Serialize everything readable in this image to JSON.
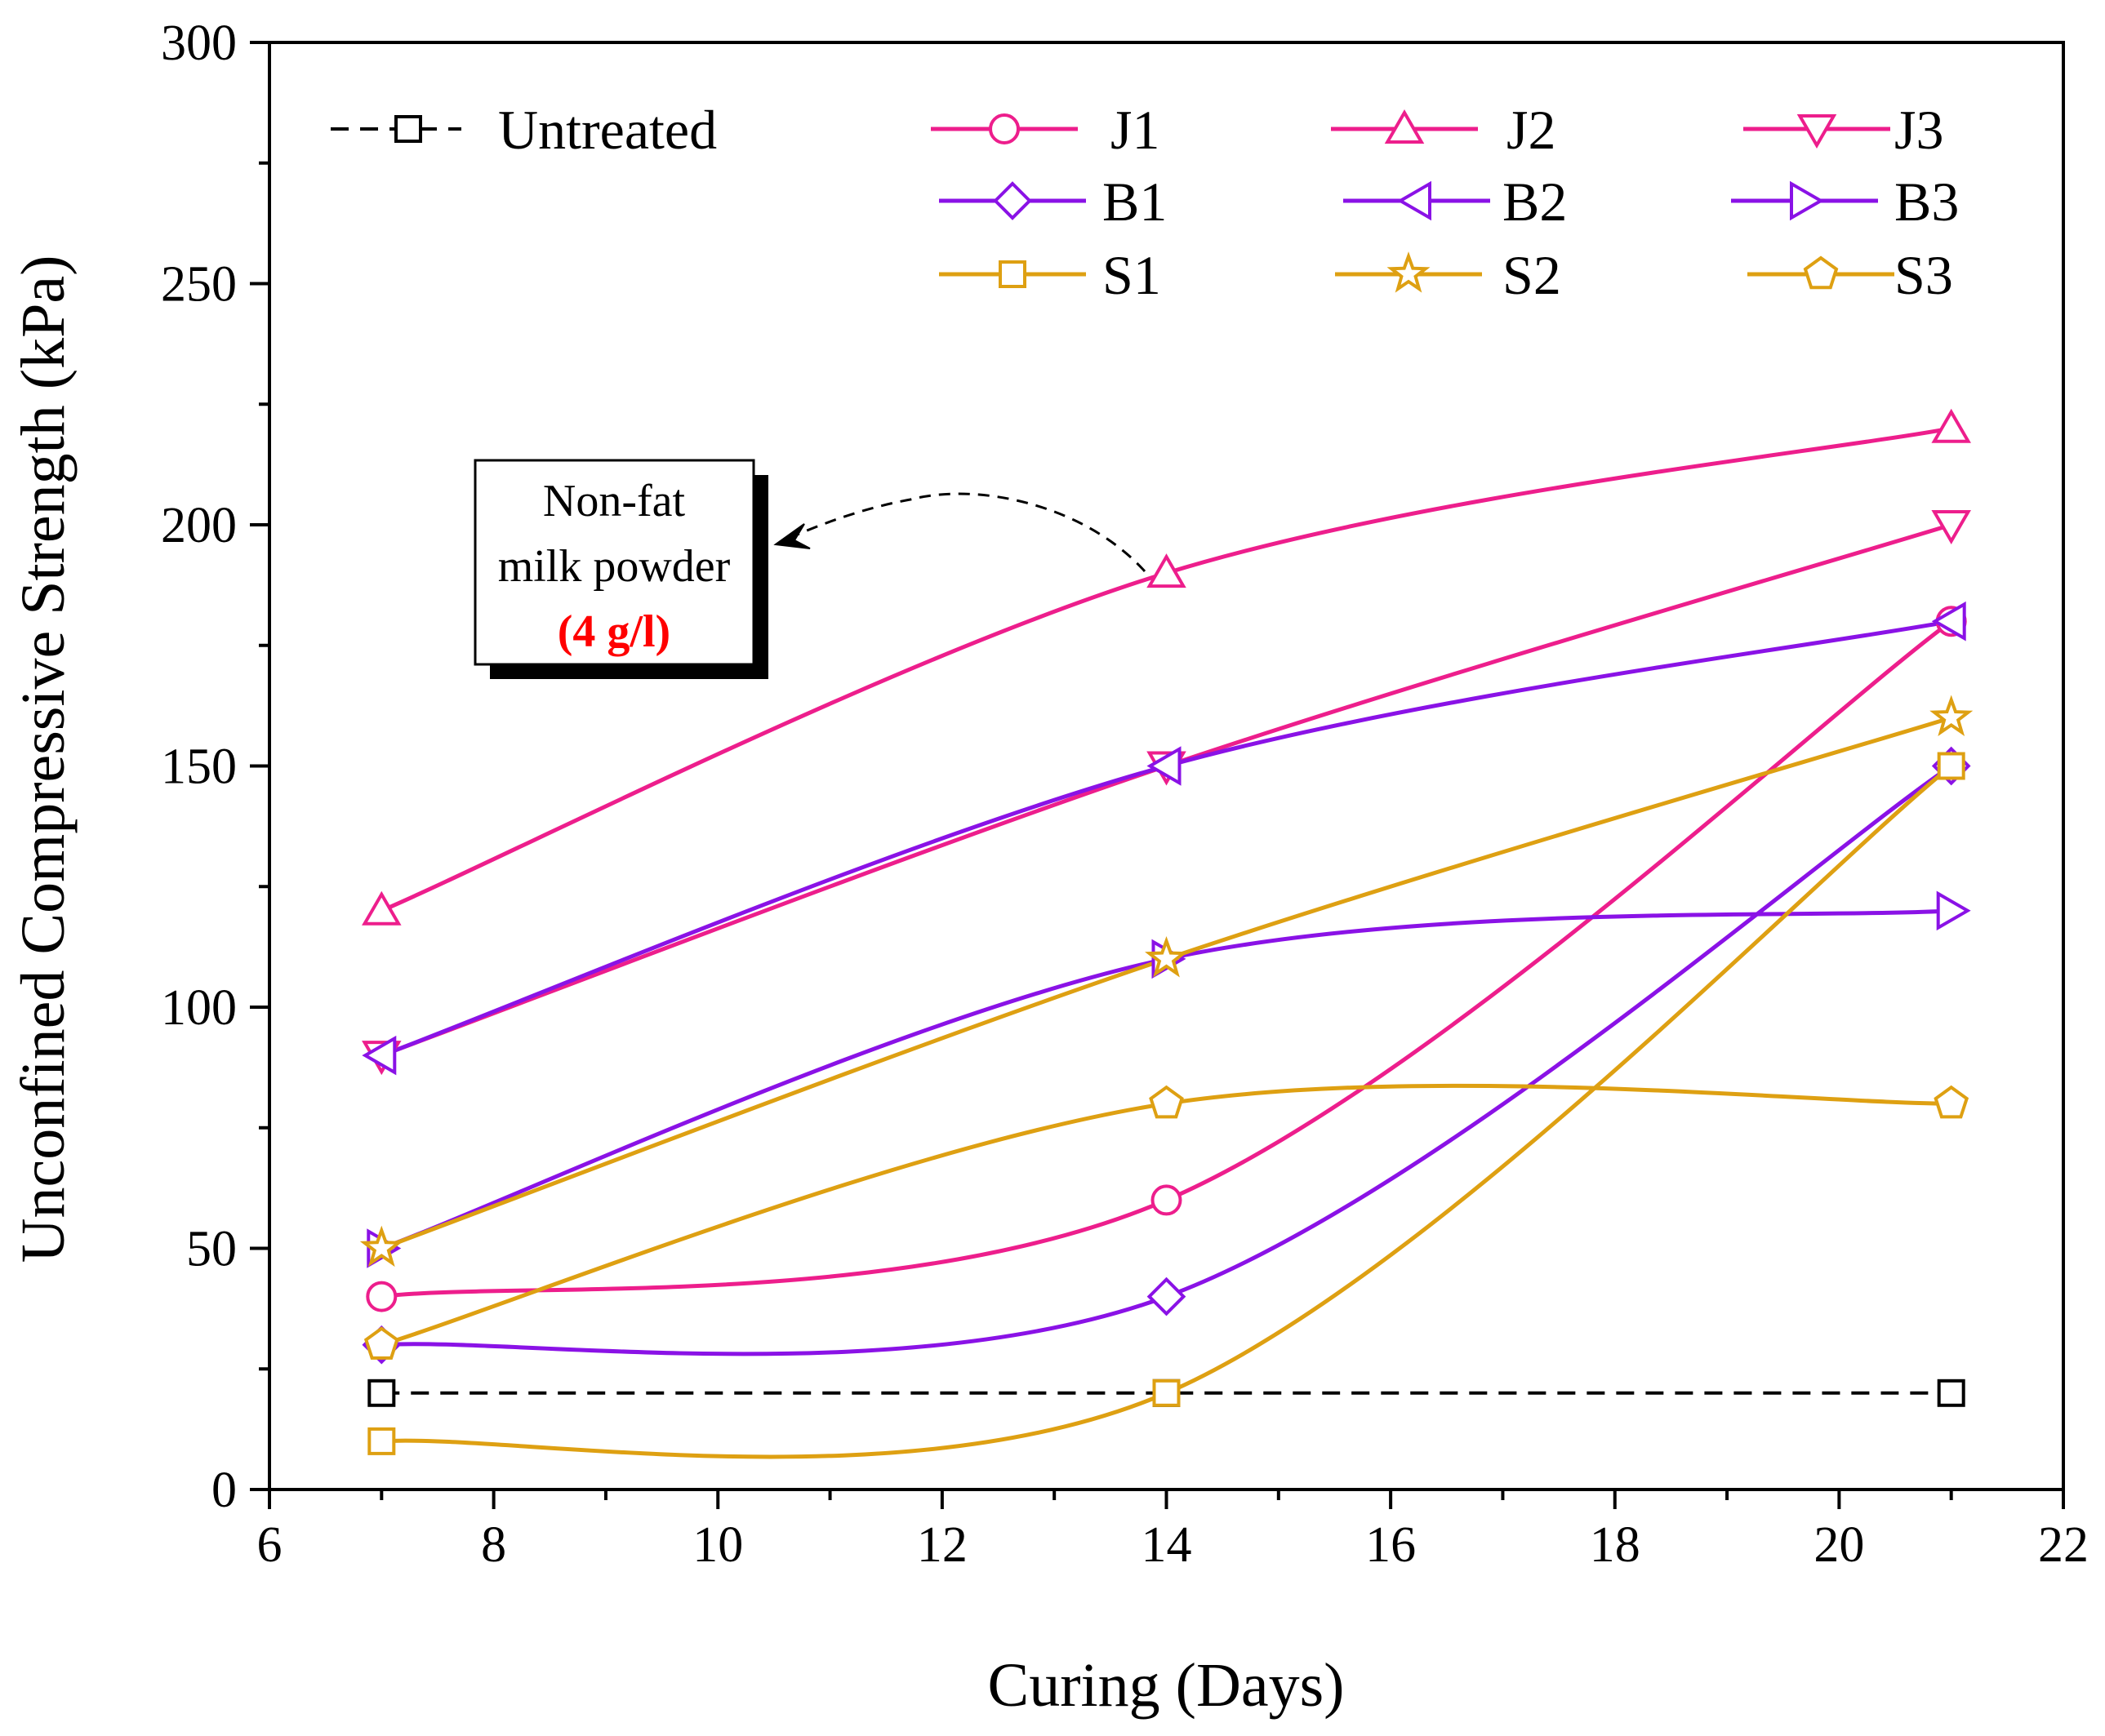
{
  "chart_data": {
    "type": "line",
    "xlabel": "Curing (Days)",
    "ylabel": "Unconfined Compressive Strength (kPa)",
    "xlim": [
      6,
      22
    ],
    "ylim": [
      0,
      300
    ],
    "xticks": [
      6,
      8,
      10,
      12,
      14,
      16,
      18,
      20,
      22
    ],
    "yticks": [
      0,
      50,
      100,
      150,
      200,
      250,
      300
    ],
    "x": [
      7,
      14,
      21
    ],
    "grid": false,
    "legend_position": "top",
    "series": [
      {
        "name": "Untreated",
        "values": [
          20,
          20,
          20
        ],
        "color": "#000000",
        "marker": "square",
        "dashed": true
      },
      {
        "name": "J1",
        "values": [
          40,
          60,
          180
        ],
        "color": "#ed1e8c",
        "marker": "circle",
        "dashed": false
      },
      {
        "name": "J2",
        "values": [
          120,
          190,
          220
        ],
        "color": "#ed1e8c",
        "marker": "triangle-up",
        "dashed": false
      },
      {
        "name": "J3",
        "values": [
          90,
          150,
          200
        ],
        "color": "#ed1e8c",
        "marker": "triangle-down",
        "dashed": false
      },
      {
        "name": "B1",
        "values": [
          30,
          40,
          150
        ],
        "color": "#8a12e6",
        "marker": "diamond",
        "dashed": false
      },
      {
        "name": "B2",
        "values": [
          90,
          150,
          180
        ],
        "color": "#8a12e6",
        "marker": "triangle-left",
        "dashed": false
      },
      {
        "name": "B3",
        "values": [
          50,
          110,
          120
        ],
        "color": "#8a12e6",
        "marker": "triangle-right",
        "dashed": false
      },
      {
        "name": "S1",
        "values": [
          10,
          20,
          150
        ],
        "color": "#dea012",
        "marker": "square",
        "dashed": false
      },
      {
        "name": "S2",
        "values": [
          50,
          110,
          160
        ],
        "color": "#dea012",
        "marker": "star",
        "dashed": false
      },
      {
        "name": "S3",
        "values": [
          30,
          80,
          80
        ],
        "color": "#dea012",
        "marker": "pentagon",
        "dashed": false
      }
    ],
    "annotation": {
      "line1": "Non-fat",
      "line2": "milk powder",
      "line3": "(4 g/l)",
      "line3_color": "#ff0000",
      "points_to_series": "J2",
      "points_to_x": 14
    }
  }
}
